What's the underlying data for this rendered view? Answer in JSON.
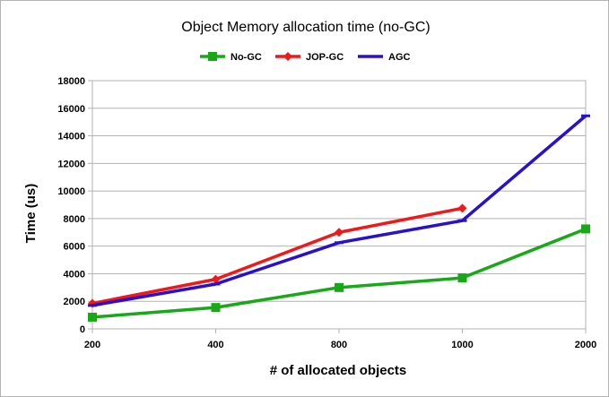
{
  "chart_data": {
    "type": "line",
    "title": "Object Memory allocation time (no-GC)",
    "xlabel": "# of allocated objects",
    "ylabel": "Time (us)",
    "categories": [
      "200",
      "400",
      "800",
      "1000",
      "2000"
    ],
    "ylim": [
      0,
      18000
    ],
    "yticks": [
      0,
      2000,
      4000,
      6000,
      8000,
      10000,
      12000,
      14000,
      16000,
      18000
    ],
    "grid": true,
    "legend_position": "top",
    "series": [
      {
        "name": "No-GC",
        "color": "#18a818",
        "marker": "square",
        "values": [
          850,
          1550,
          3000,
          3700,
          7250
        ]
      },
      {
        "name": "JOP-GC",
        "color": "#f01818",
        "marker": "diamond",
        "values": [
          1850,
          3600,
          7000,
          8750,
          null
        ]
      },
      {
        "name": "AGC",
        "color": "#2810d0",
        "marker": "dash",
        "values": [
          1700,
          3250,
          6250,
          7850,
          15450
        ]
      }
    ]
  }
}
